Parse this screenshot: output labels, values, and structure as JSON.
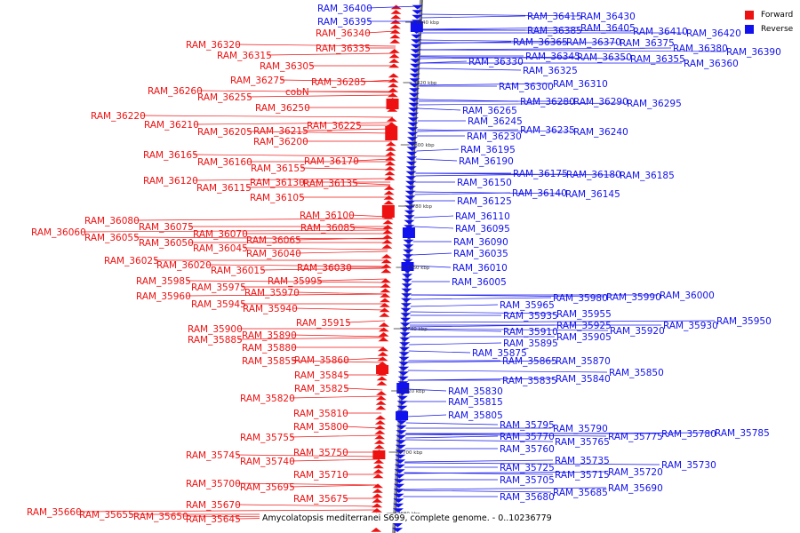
{
  "colors": {
    "forward": "#ee1111",
    "reverse": "#1111ee"
  },
  "legend": [
    {
      "label": "Forward",
      "color": "#ee1111"
    },
    {
      "label": "Reverse",
      "color": "#1111ee"
    }
  ],
  "caption": "Amycolatopsis mediterranei S699, complete genome. - 0..10236779",
  "ticks": [
    "7840 kbp",
    "7820 kbp",
    "7800 kbp",
    "7780 kbp",
    "7760 kbp",
    "7740 kbp",
    "7720 kbp",
    "7700 kbp",
    "7680 kbp"
  ],
  "forward_labels": [
    "RAM_36340",
    "RAM_36335",
    "RAM_36320",
    "RAM_36315",
    "RAM_36305",
    "RAM_36275",
    "RAM_36285",
    "cobN",
    "RAM_36260",
    "RAM_36255",
    "RAM_36250",
    "RAM_36220",
    "RAM_36210",
    "RAM_36225",
    "RAM_36205",
    "RAM_36215",
    "RAM_36200",
    "RAM_36165",
    "RAM_36170",
    "RAM_36160",
    "RAM_36155",
    "RAM_36120",
    "RAM_36130",
    "RAM_36135",
    "RAM_36115",
    "RAM_36105",
    "RAM_36100",
    "RAM_36080",
    "RAM_36075",
    "RAM_36085",
    "RAM_36060",
    "RAM_36070",
    "RAM_36055",
    "RAM_36065",
    "RAM_36050",
    "RAM_36045",
    "RAM_36040",
    "RAM_36025",
    "RAM_36020",
    "RAM_36015",
    "RAM_36030",
    "RAM_35985",
    "RAM_35995",
    "RAM_35975",
    "RAM_35970",
    "RAM_35960",
    "RAM_35945",
    "RAM_35940",
    "RAM_35915",
    "RAM_35900",
    "RAM_35890",
    "RAM_35885",
    "RAM_35880",
    "RAM_35855",
    "RAM_35860",
    "RAM_35845",
    "RAM_35825",
    "RAM_35820",
    "RAM_35810",
    "RAM_35800",
    "RAM_35755",
    "RAM_35750",
    "RAM_35745",
    "RAM_35740",
    "RAM_35710",
    "RAM_35700",
    "RAM_35695",
    "RAM_35675",
    "RAM_35670",
    "RAM_35660",
    "RAM_35655",
    "RAM_35650",
    "RAM_35645"
  ],
  "reverse_labels": [
    "RAM_36400",
    "RAM_36395",
    "RAM_36415",
    "RAM_36430",
    "RAM_36385",
    "RAM_36405",
    "RAM_36410",
    "RAM_36420",
    "RAM_36365",
    "RAM_36370",
    "RAM_36375",
    "RAM_36380",
    "RAM_36390",
    "RAM_36345",
    "RAM_36350",
    "RAM_36355",
    "RAM_36360",
    "RAM_36330",
    "RAM_36325",
    "RAM_36300",
    "RAM_36310",
    "RAM_36280",
    "RAM_36290",
    "RAM_36295",
    "RAM_36265",
    "RAM_36245",
    "RAM_36235",
    "RAM_36240",
    "RAM_36230",
    "RAM_36195",
    "RAM_36190",
    "RAM_36175",
    "RAM_36180",
    "RAM_36185",
    "RAM_36150",
    "RAM_36140",
    "RAM_36145",
    "RAM_36125",
    "RAM_36110",
    "RAM_36095",
    "RAM_36090",
    "RAM_36035",
    "RAM_36010",
    "RAM_36005",
    "RAM_35980",
    "RAM_35990",
    "RAM_36000",
    "RAM_35965",
    "RAM_35955",
    "RAM_35935",
    "RAM_35925",
    "RAM_35920",
    "RAM_35930",
    "RAM_35950",
    "RAM_35910",
    "RAM_35905",
    "RAM_35895",
    "RAM_35875",
    "RAM_35865",
    "RAM_35870",
    "RAM_35850",
    "RAM_35835",
    "RAM_35840",
    "RAM_35830",
    "RAM_35815",
    "RAM_35805",
    "RAM_35795",
    "RAM_35790",
    "RAM_35770",
    "RAM_35775",
    "RAM_35780",
    "RAM_35785",
    "RAM_35765",
    "RAM_35760",
    "RAM_35735",
    "RAM_35730",
    "RAM_35725",
    "RAM_35720",
    "RAM_35715",
    "RAM_35705",
    "RAM_35690",
    "RAM_35685",
    "RAM_35680"
  ]
}
